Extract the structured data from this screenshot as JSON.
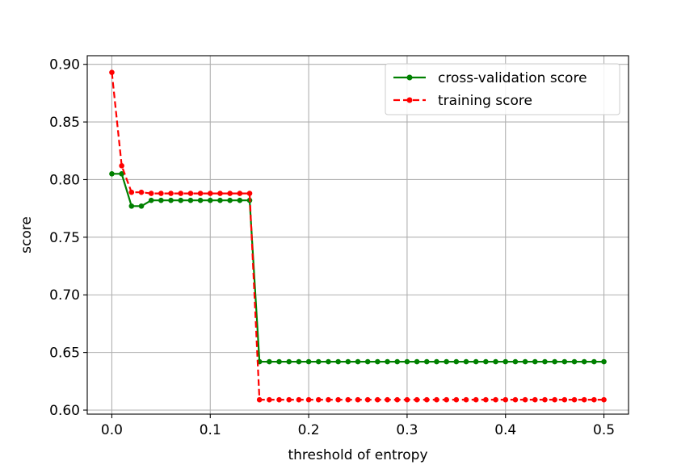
{
  "chart_data": {
    "type": "line",
    "title": "",
    "xlabel": "threshold of entropy",
    "ylabel": "score",
    "xlim": [
      -0.025,
      0.525
    ],
    "ylim": [
      0.5965,
      0.9075
    ],
    "xticks": [
      0.0,
      0.1,
      0.2,
      0.3,
      0.4,
      0.5
    ],
    "xtick_labels": [
      "0.0",
      "0.1",
      "0.2",
      "0.3",
      "0.4",
      "0.5"
    ],
    "yticks": [
      0.6,
      0.65,
      0.7,
      0.75,
      0.8,
      0.85,
      0.9
    ],
    "ytick_labels": [
      "0.60",
      "0.65",
      "0.70",
      "0.75",
      "0.80",
      "0.85",
      "0.90"
    ],
    "grid": true,
    "legend_position": "top-right",
    "x": [
      0.0,
      0.01,
      0.02,
      0.03,
      0.04,
      0.05,
      0.06,
      0.07,
      0.08,
      0.09,
      0.1,
      0.11,
      0.12,
      0.13,
      0.14,
      0.15,
      0.16,
      0.17,
      0.18,
      0.19,
      0.2,
      0.21,
      0.22,
      0.23,
      0.24,
      0.25,
      0.26,
      0.27,
      0.28,
      0.29,
      0.3,
      0.31,
      0.32,
      0.33,
      0.34,
      0.35,
      0.36,
      0.37,
      0.38,
      0.39,
      0.4,
      0.41,
      0.42,
      0.43,
      0.44,
      0.45,
      0.46,
      0.47,
      0.48,
      0.49,
      0.5
    ],
    "series": [
      {
        "name": "cross-validation score",
        "color": "#008000",
        "linestyle": "solid",
        "marker": "dot",
        "values": [
          0.805,
          0.805,
          0.777,
          0.777,
          0.782,
          0.782,
          0.782,
          0.782,
          0.782,
          0.782,
          0.782,
          0.782,
          0.782,
          0.782,
          0.782,
          0.642,
          0.642,
          0.642,
          0.642,
          0.642,
          0.642,
          0.642,
          0.642,
          0.642,
          0.642,
          0.642,
          0.642,
          0.642,
          0.642,
          0.642,
          0.642,
          0.642,
          0.642,
          0.642,
          0.642,
          0.642,
          0.642,
          0.642,
          0.642,
          0.642,
          0.642,
          0.642,
          0.642,
          0.642,
          0.642,
          0.642,
          0.642,
          0.642,
          0.642,
          0.642,
          0.642
        ]
      },
      {
        "name": "training score",
        "color": "#ff0000",
        "linestyle": "dashed",
        "marker": "dot",
        "values": [
          0.893,
          0.812,
          0.789,
          0.789,
          0.788,
          0.788,
          0.788,
          0.788,
          0.788,
          0.788,
          0.788,
          0.788,
          0.788,
          0.788,
          0.788,
          0.609,
          0.609,
          0.609,
          0.609,
          0.609,
          0.609,
          0.609,
          0.609,
          0.609,
          0.609,
          0.609,
          0.609,
          0.609,
          0.609,
          0.609,
          0.609,
          0.609,
          0.609,
          0.609,
          0.609,
          0.609,
          0.609,
          0.609,
          0.609,
          0.609,
          0.609,
          0.609,
          0.609,
          0.609,
          0.609,
          0.609,
          0.609,
          0.609,
          0.609,
          0.609,
          0.609
        ]
      }
    ]
  }
}
